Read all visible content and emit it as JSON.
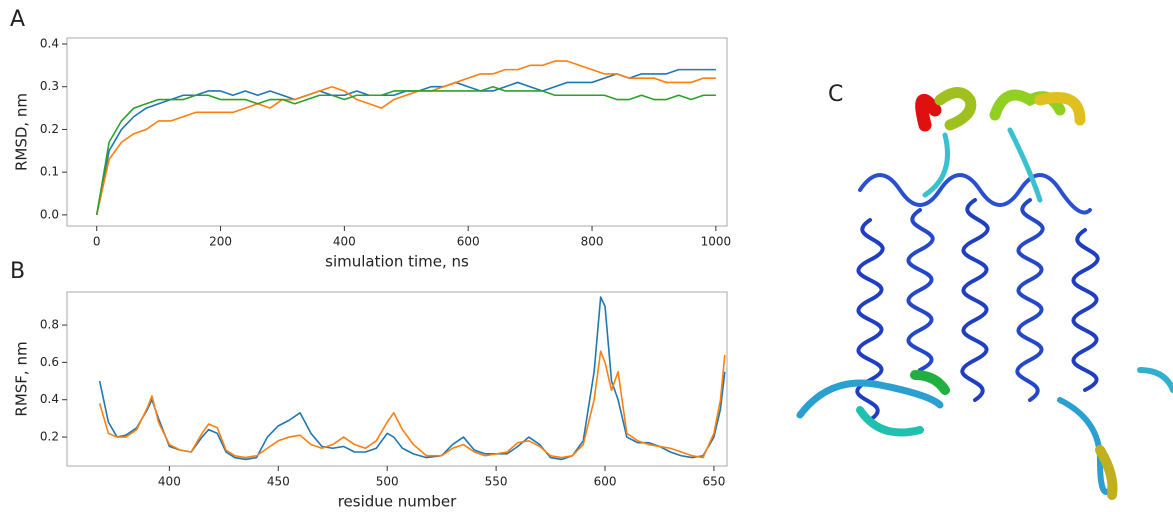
{
  "chart_data": [
    {
      "type": "line",
      "panel_label": "A",
      "xlabel": "simulation time, ns",
      "ylabel": "RMSD, nm",
      "x": [
        0,
        20,
        40,
        60,
        80,
        100,
        120,
        140,
        160,
        180,
        200,
        220,
        240,
        260,
        280,
        300,
        320,
        340,
        360,
        380,
        400,
        420,
        440,
        460,
        480,
        500,
        520,
        540,
        560,
        580,
        600,
        620,
        640,
        660,
        680,
        700,
        720,
        740,
        760,
        780,
        800,
        820,
        840,
        860,
        880,
        900,
        920,
        940,
        960,
        980,
        1000
      ],
      "series": [
        {
          "color": "#1f77b4",
          "values": [
            0,
            0.15,
            0.2,
            0.23,
            0.25,
            0.26,
            0.27,
            0.28,
            0.28,
            0.29,
            0.29,
            0.28,
            0.29,
            0.28,
            0.29,
            0.28,
            0.27,
            0.28,
            0.29,
            0.28,
            0.28,
            0.29,
            0.28,
            0.28,
            0.28,
            0.29,
            0.29,
            0.3,
            0.3,
            0.31,
            0.3,
            0.29,
            0.29,
            0.3,
            0.31,
            0.3,
            0.29,
            0.3,
            0.31,
            0.31,
            0.31,
            0.32,
            0.33,
            0.32,
            0.33,
            0.33,
            0.33,
            0.34,
            0.34,
            0.34,
            0.34
          ]
        },
        {
          "color": "#ff7f0e",
          "values": [
            0,
            0.13,
            0.17,
            0.19,
            0.2,
            0.22,
            0.22,
            0.23,
            0.24,
            0.24,
            0.24,
            0.24,
            0.25,
            0.26,
            0.25,
            0.27,
            0.27,
            0.28,
            0.29,
            0.3,
            0.29,
            0.27,
            0.26,
            0.25,
            0.27,
            0.28,
            0.29,
            0.29,
            0.3,
            0.31,
            0.32,
            0.33,
            0.33,
            0.34,
            0.34,
            0.35,
            0.35,
            0.36,
            0.36,
            0.35,
            0.34,
            0.33,
            0.33,
            0.32,
            0.32,
            0.32,
            0.31,
            0.31,
            0.31,
            0.32,
            0.32
          ]
        },
        {
          "color": "#2ca02c",
          "values": [
            0,
            0.17,
            0.22,
            0.25,
            0.26,
            0.27,
            0.27,
            0.27,
            0.28,
            0.28,
            0.27,
            0.27,
            0.27,
            0.26,
            0.27,
            0.27,
            0.26,
            0.27,
            0.28,
            0.28,
            0.27,
            0.28,
            0.28,
            0.28,
            0.29,
            0.29,
            0.29,
            0.29,
            0.29,
            0.29,
            0.29,
            0.29,
            0.3,
            0.29,
            0.29,
            0.29,
            0.29,
            0.28,
            0.28,
            0.28,
            0.28,
            0.28,
            0.27,
            0.27,
            0.28,
            0.27,
            0.27,
            0.28,
            0.27,
            0.28,
            0.28
          ]
        }
      ],
      "xlim": [
        -48,
        1018
      ],
      "xticks": [
        0,
        200,
        400,
        600,
        800,
        1000
      ],
      "ylim": [
        -0.026,
        0.414
      ],
      "yticks": [
        {
          "value": 0,
          "label": "0.0"
        },
        0.1,
        0.2,
        0.3,
        0.4
      ]
    },
    {
      "type": "line",
      "panel_label": "B",
      "xlabel": "residue number",
      "ylabel": "RMSF, nm",
      "x": [
        368,
        372,
        376,
        380,
        385,
        390,
        392,
        395,
        400,
        405,
        410,
        415,
        418,
        422,
        426,
        430,
        435,
        440,
        445,
        450,
        455,
        460,
        465,
        470,
        475,
        480,
        485,
        490,
        495,
        500,
        503,
        507,
        512,
        518,
        525,
        530,
        535,
        540,
        545,
        550,
        555,
        560,
        565,
        570,
        575,
        580,
        585,
        590,
        595,
        598,
        600,
        603,
        606,
        610,
        615,
        620,
        625,
        630,
        635,
        640,
        645,
        650,
        653,
        655
      ],
      "series": [
        {
          "color": "#1f77b4",
          "values": [
            0.5,
            0.28,
            0.2,
            0.21,
            0.25,
            0.35,
            0.4,
            0.3,
            0.15,
            0.13,
            0.12,
            0.2,
            0.24,
            0.22,
            0.12,
            0.09,
            0.08,
            0.09,
            0.2,
            0.26,
            0.29,
            0.33,
            0.22,
            0.15,
            0.14,
            0.15,
            0.12,
            0.12,
            0.14,
            0.22,
            0.2,
            0.14,
            0.11,
            0.09,
            0.1,
            0.16,
            0.2,
            0.13,
            0.11,
            0.11,
            0.11,
            0.15,
            0.2,
            0.16,
            0.09,
            0.08,
            0.1,
            0.18,
            0.55,
            0.95,
            0.9,
            0.5,
            0.4,
            0.2,
            0.17,
            0.17,
            0.15,
            0.12,
            0.1,
            0.09,
            0.1,
            0.2,
            0.35,
            0.55
          ]
        },
        {
          "color": "#ff7f0e",
          "values": [
            0.38,
            0.22,
            0.2,
            0.2,
            0.24,
            0.36,
            0.42,
            0.28,
            0.16,
            0.13,
            0.12,
            0.22,
            0.27,
            0.25,
            0.13,
            0.1,
            0.09,
            0.1,
            0.14,
            0.18,
            0.2,
            0.21,
            0.16,
            0.14,
            0.16,
            0.2,
            0.16,
            0.14,
            0.18,
            0.28,
            0.33,
            0.24,
            0.16,
            0.1,
            0.1,
            0.14,
            0.16,
            0.12,
            0.1,
            0.11,
            0.12,
            0.17,
            0.18,
            0.15,
            0.1,
            0.09,
            0.1,
            0.16,
            0.4,
            0.66,
            0.6,
            0.45,
            0.55,
            0.22,
            0.18,
            0.16,
            0.15,
            0.14,
            0.12,
            0.1,
            0.09,
            0.22,
            0.4,
            0.64
          ]
        }
      ],
      "xlim": [
        353,
        656
      ],
      "xticks": [
        400,
        450,
        500,
        550,
        600,
        650
      ],
      "ylim": [
        0.045,
        0.977
      ],
      "yticks": [
        0.2,
        0.4,
        0.6,
        0.8
      ]
    }
  ],
  "structure": {
    "panel_label": "C"
  }
}
